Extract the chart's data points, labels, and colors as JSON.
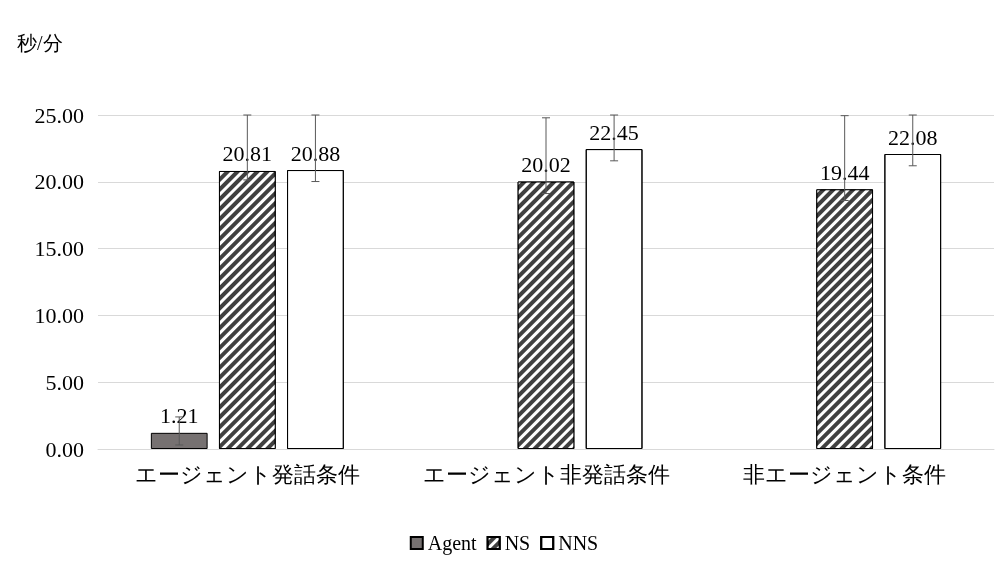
{
  "chart_data": {
    "type": "bar",
    "ylabel": "秒/分",
    "categories": [
      "エージェント発話条件",
      "エージェント非発話条件",
      "非エージェント条件"
    ],
    "series": [
      {
        "name": "Agent",
        "color": "#767171",
        "values": [
          1.21,
          null,
          null
        ],
        "errors": [
          [
            0.3,
            2.4
          ],
          null,
          null
        ]
      },
      {
        "name": "NS",
        "color": "#404040",
        "values": [
          20.81,
          20.02,
          19.44
        ],
        "errors": [
          [
            20.14,
            25
          ],
          [
            19.12,
            24.79
          ],
          [
            18.6,
            24.95
          ]
        ]
      },
      {
        "name": "NNS",
        "color": "#ffffff",
        "values": [
          20.88,
          22.45,
          22.08
        ],
        "errors": [
          [
            20.02,
            25
          ],
          [
            21.57,
            25
          ],
          [
            21.2,
            25
          ]
        ]
      }
    ],
    "ylim": [
      0,
      25
    ],
    "yticks": [
      {
        "value": 0,
        "label": "0.00"
      },
      {
        "value": 5,
        "label": "5.00"
      },
      {
        "value": 10,
        "label": "10.00"
      },
      {
        "value": 15,
        "label": "15.00"
      },
      {
        "value": 20,
        "label": "20.00"
      },
      {
        "value": 25,
        "label": "25.00"
      }
    ],
    "grid": "y",
    "legend": "bottom",
    "data_labels": true
  }
}
